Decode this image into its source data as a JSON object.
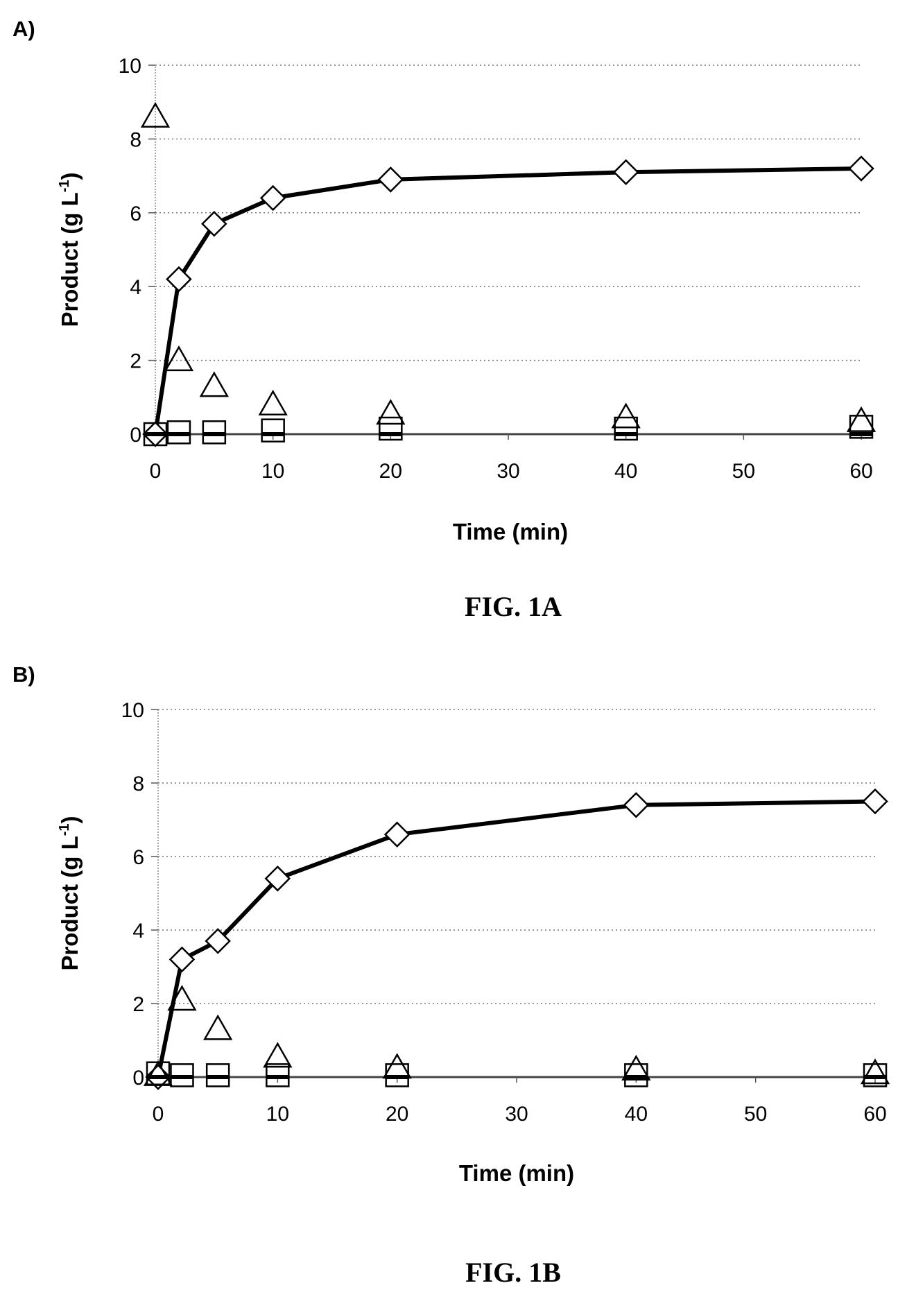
{
  "chart_data": [
    {
      "type": "scatter",
      "panel_label": "A)",
      "caption": "FIG. 1A",
      "xlabel": "Time (min)",
      "ylabel_main": "Product (g L",
      "ylabel_sup": "-1",
      "ylabel_end": ")",
      "xlim": [
        0,
        60
      ],
      "ylim": [
        0,
        10
      ],
      "xticks": [
        0,
        10,
        20,
        30,
        40,
        50,
        60
      ],
      "yticks": [
        0,
        2,
        4,
        6,
        8,
        10
      ],
      "grid": "horizontal dotted",
      "series": [
        {
          "marker": "diamond",
          "line": true,
          "x": [
            0,
            2,
            5,
            10,
            20,
            40,
            60
          ],
          "y": [
            0,
            4.2,
            5.7,
            6.4,
            6.9,
            7.1,
            7.2
          ]
        },
        {
          "marker": "triangle",
          "line": false,
          "x": [
            0,
            2,
            5,
            10,
            20,
            40,
            60
          ],
          "y": [
            8.6,
            2.0,
            1.3,
            0.8,
            0.55,
            0.45,
            0.35
          ]
        },
        {
          "marker": "square",
          "line": false,
          "x": [
            0,
            2,
            5,
            10,
            20,
            40,
            60
          ],
          "y": [
            0,
            0.05,
            0.05,
            0.1,
            0.15,
            0.15,
            0.2
          ]
        },
        {
          "marker": "dash",
          "line": false,
          "x": [
            0,
            2,
            5,
            10,
            20,
            40,
            60
          ],
          "y": [
            0,
            0,
            0,
            0,
            0,
            0,
            0
          ]
        }
      ]
    },
    {
      "type": "scatter",
      "panel_label": "B)",
      "caption": "FIG. 1B",
      "xlabel": "Time (min)",
      "ylabel_main": "Product (g L",
      "ylabel_sup": "-1",
      "ylabel_end": ")",
      "xlim": [
        0,
        60
      ],
      "ylim": [
        0,
        10
      ],
      "xticks": [
        0,
        10,
        20,
        30,
        40,
        50,
        60
      ],
      "yticks": [
        0,
        2,
        4,
        6,
        8,
        10
      ],
      "grid": "horizontal dotted",
      "series": [
        {
          "marker": "diamond",
          "line": true,
          "x": [
            0,
            2,
            5,
            10,
            20,
            40,
            60
          ],
          "y": [
            0,
            3.2,
            3.7,
            5.4,
            6.6,
            7.4,
            7.5
          ]
        },
        {
          "marker": "triangle",
          "line": false,
          "x": [
            0,
            2,
            5,
            10,
            20,
            40,
            60
          ],
          "y": [
            0.05,
            2.1,
            1.3,
            0.55,
            0.25,
            0.2,
            0.1
          ]
        },
        {
          "marker": "square",
          "line": false,
          "x": [
            0,
            2,
            5,
            10,
            20,
            40,
            60
          ],
          "y": [
            0.1,
            0.05,
            0.05,
            0.05,
            0.05,
            0.05,
            0.05
          ]
        },
        {
          "marker": "dash",
          "line": false,
          "x": [
            0,
            2,
            5,
            10,
            20,
            40,
            60
          ],
          "y": [
            0,
            0,
            0,
            0,
            0,
            0,
            0
          ]
        }
      ]
    }
  ]
}
